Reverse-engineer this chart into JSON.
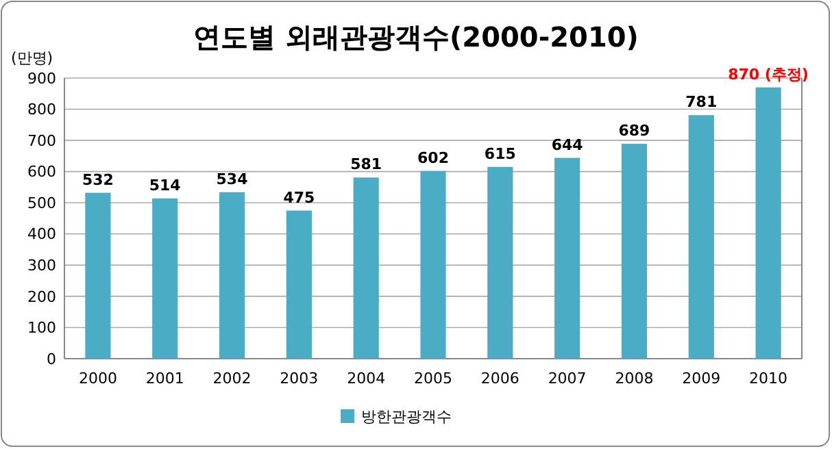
{
  "chart_data": {
    "type": "bar",
    "title": "연도별 외래관광객수(2000-2010)",
    "ylabel": "(만명)",
    "categories": [
      "2000",
      "2001",
      "2002",
      "2003",
      "2004",
      "2005",
      "2006",
      "2007",
      "2008",
      "2009",
      "2010"
    ],
    "series": [
      {
        "name": "방한관광객수",
        "color": "#4bacc6",
        "values": [
          532,
          514,
          534,
          475,
          581,
          602,
          615,
          644,
          689,
          781,
          870
        ]
      }
    ],
    "value_labels": [
      "532",
      "514",
      "534",
      "475",
      "581",
      "602",
      "615",
      "644",
      "689",
      "781",
      null
    ],
    "annotations": [
      {
        "text": "870 (추정)",
        "x": "2010",
        "y": 870
      }
    ],
    "ylim": [
      0,
      900
    ],
    "yticks": [
      0,
      100,
      200,
      300,
      400,
      500,
      600,
      700,
      800,
      900
    ],
    "grid": "y",
    "legend": "bottom"
  }
}
